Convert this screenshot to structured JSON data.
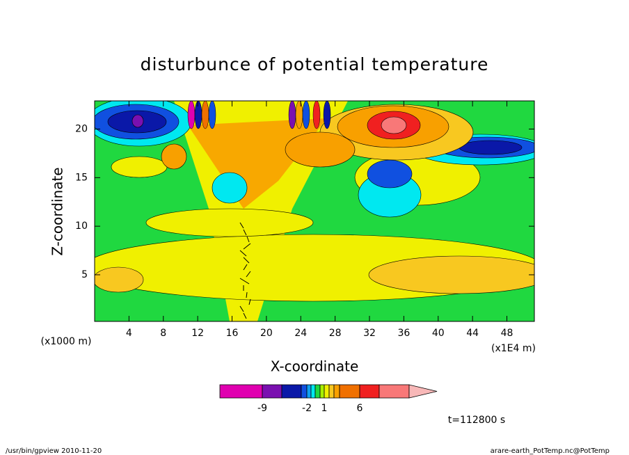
{
  "chart_data": {
    "type": "contour",
    "title": "disturbunce of potential temperature",
    "x_label": "X-coordinate",
    "y_label": "Z-coordinate",
    "x_unit_label": "(x1E4 m)",
    "y_unit_label": "(x1000 m)",
    "xlim": [
      0,
      51.2
    ],
    "ylim": [
      0.2,
      22.9
    ],
    "xticks": [
      4,
      8,
      12,
      16,
      20,
      24,
      28,
      32,
      36,
      40,
      44,
      48
    ],
    "yticks": [
      5,
      10,
      15,
      20
    ],
    "colorbar": {
      "colors": [
        "#e000b0",
        "#7a10b0",
        "#0a18a8",
        "#1050e0",
        "#10a0f0",
        "#00e8f0",
        "#20d840",
        "#a8f000",
        "#f0f000",
        "#f8c820",
        "#f8a000",
        "#f07000",
        "#f02020",
        "#f87878",
        "#f8b8b8"
      ],
      "ticks": [
        -9,
        -2,
        1,
        6
      ]
    },
    "time_label": "t=112800 s",
    "footer_left": "/usr/bin/gpview   2010-11-20",
    "footer_right": "arare-earth_PotTemp.nc@PotTemp"
  }
}
